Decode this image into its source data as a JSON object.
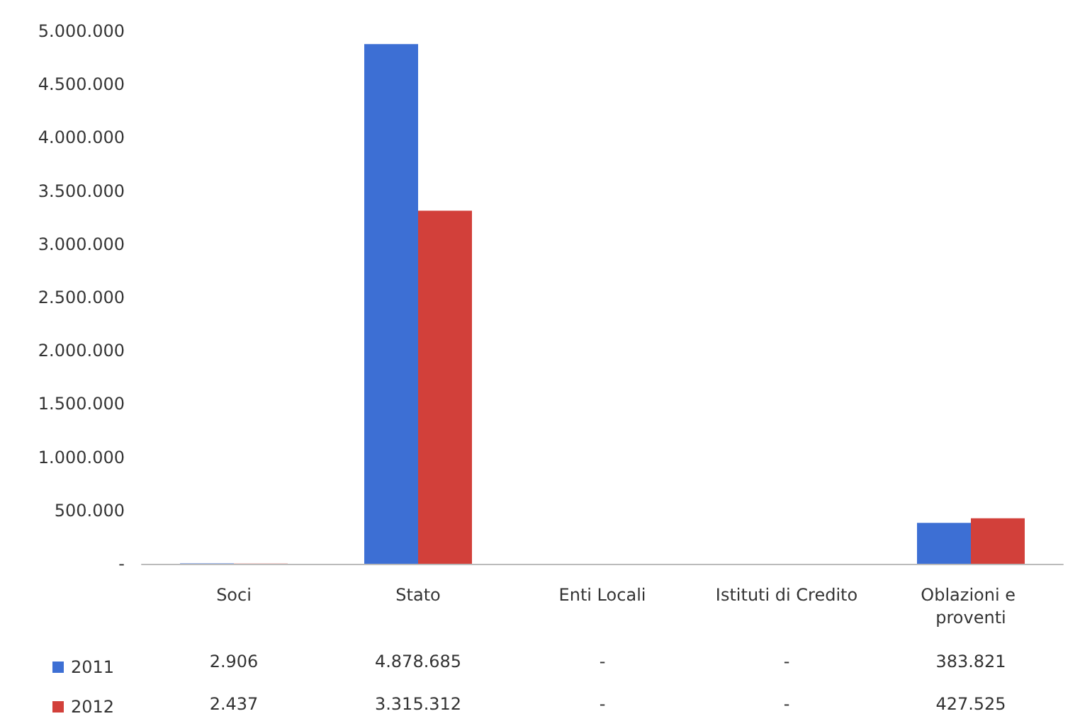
{
  "chart_data": {
    "type": "bar",
    "categories": [
      "Soci",
      "Stato",
      "Enti Locali",
      "Istituti di Credito",
      "Oblazioni e proventi"
    ],
    "series": [
      {
        "name": "2011",
        "color": "#3d6fd4",
        "values": [
          2906,
          4878685,
          0,
          0,
          383821
        ],
        "value_labels": [
          "2.906",
          "4.878.685",
          "-",
          "-",
          "383.821"
        ]
      },
      {
        "name": "2012",
        "color": "#d2403a",
        "values": [
          2437,
          3315312,
          0,
          0,
          427525
        ],
        "value_labels": [
          "2.437",
          "3.315.312",
          "-",
          "-",
          "427.525"
        ]
      }
    ],
    "ylim": [
      0,
      5000000
    ],
    "yticks": [
      {
        "value": 0,
        "label": "-"
      },
      {
        "value": 500000,
        "label": "500.000"
      },
      {
        "value": 1000000,
        "label": "1.000.000"
      },
      {
        "value": 1500000,
        "label": "1.500.000"
      },
      {
        "value": 2000000,
        "label": "2.000.000"
      },
      {
        "value": 2500000,
        "label": "2.500.000"
      },
      {
        "value": 3000000,
        "label": "3.000.000"
      },
      {
        "value": 3500000,
        "label": "3.500.000"
      },
      {
        "value": 4000000,
        "label": "4.000.000"
      },
      {
        "value": 4500000,
        "label": "4.500.000"
      },
      {
        "value": 5000000,
        "label": "5.000.000"
      }
    ],
    "grid": false,
    "legend": "bottom left"
  }
}
